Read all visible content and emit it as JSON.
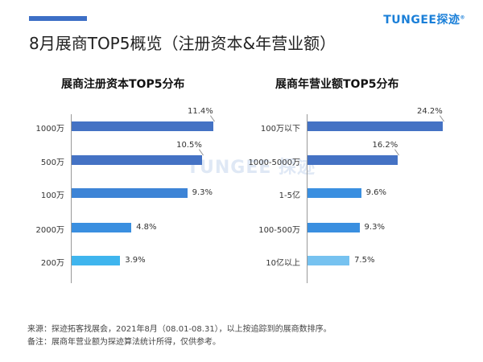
{
  "header": {
    "title": "8月展商TOP5概览（注册资本&年营业额）",
    "logo": "TUNGEE探迹",
    "accent_color": "#3d6fc6"
  },
  "watermark": "TUNGEE 探迹",
  "chart_data": [
    {
      "type": "bar",
      "orientation": "horizontal",
      "title": "展商注册资本TOP5分布",
      "categories": [
        "1000万",
        "500万",
        "100万",
        "2000万",
        "200万"
      ],
      "values": [
        11.4,
        10.5,
        9.3,
        4.8,
        3.9
      ],
      "value_labels": [
        "11.4%",
        "10.5%",
        "9.3%",
        "4.8%",
        "3.9%"
      ],
      "unit": "%",
      "bar_colors": [
        "#4472c4",
        "#4472c4",
        "#3d84d6",
        "#3a8fe0",
        "#3fb5ee"
      ],
      "xlim": [
        0,
        12
      ],
      "grid": false
    },
    {
      "type": "bar",
      "orientation": "horizontal",
      "title": "展商年营业额TOP5分布",
      "categories": [
        "100万以下",
        "1000-5000万",
        "1-5亿",
        "100-500万",
        "10亿以上"
      ],
      "values": [
        24.2,
        16.2,
        9.6,
        9.3,
        7.5
      ],
      "value_labels": [
        "24.2%",
        "16.2%",
        "9.6%",
        "9.3%",
        "7.5%"
      ],
      "unit": "%",
      "bar_colors": [
        "#4472c4",
        "#4472c4",
        "#3a8fe0",
        "#3a8fe0",
        "#76c2f0"
      ],
      "xlim": [
        0,
        26
      ],
      "grid": false
    }
  ],
  "notes": {
    "source": "来源：探迹拓客找展会，2021年8月（08.01-08.31），以上按追踪到的展商数排序。",
    "remark": "备注：展商年营业额为探迹算法统计所得，仅供参考。"
  }
}
